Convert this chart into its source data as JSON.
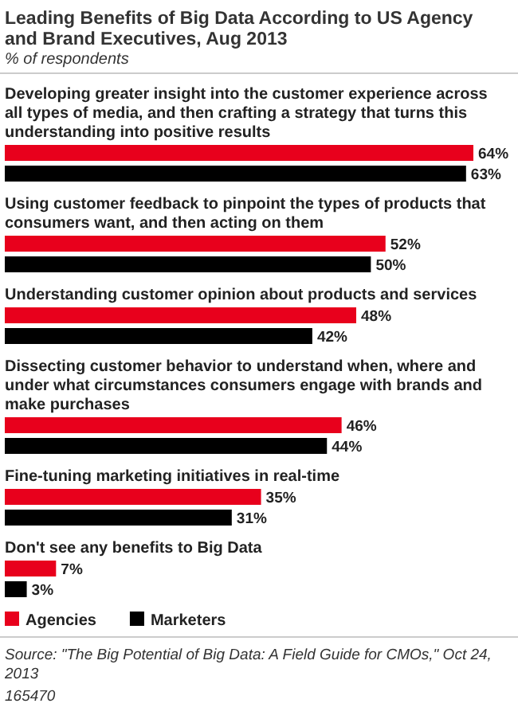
{
  "chart_data": {
    "type": "bar",
    "orientation": "horizontal",
    "title": "Leading Benefits of Big Data According to US Agency and Brand Executives, Aug 2013",
    "subtitle": "% of respondents",
    "categories": [
      "Developing greater insight into the customer experience across all types of media, and then crafting a strategy that turns this understanding into positive results",
      "Using customer feedback to pinpoint the types of products that consumers want, and then acting on them",
      "Understanding customer opinion about products and services",
      "Dissecting customer behavior to understand when, where and under what circumstances consumers engage with brands and make purchases",
      "Fine-tuning marketing initiatives in real-time",
      "Don't see any benefits to Big Data"
    ],
    "series": [
      {
        "name": "Agencies",
        "color": "#e8001c",
        "values": [
          64,
          52,
          48,
          46,
          35,
          7
        ],
        "value_labels": [
          "64%",
          "52%",
          "48%",
          "46%",
          "35%",
          "7%"
        ]
      },
      {
        "name": "Marketers",
        "color": "#000000",
        "values": [
          63,
          50,
          42,
          44,
          31,
          3
        ],
        "value_labels": [
          "63%",
          "50%",
          "42%",
          "44%",
          "31%",
          "3%"
        ]
      }
    ],
    "legend": "bottom left",
    "annotations": [
      "Source: \"The Big Potential of Big Data: A Field Guide for CMOs,\" Oct 24, 2013",
      "165470"
    ]
  }
}
